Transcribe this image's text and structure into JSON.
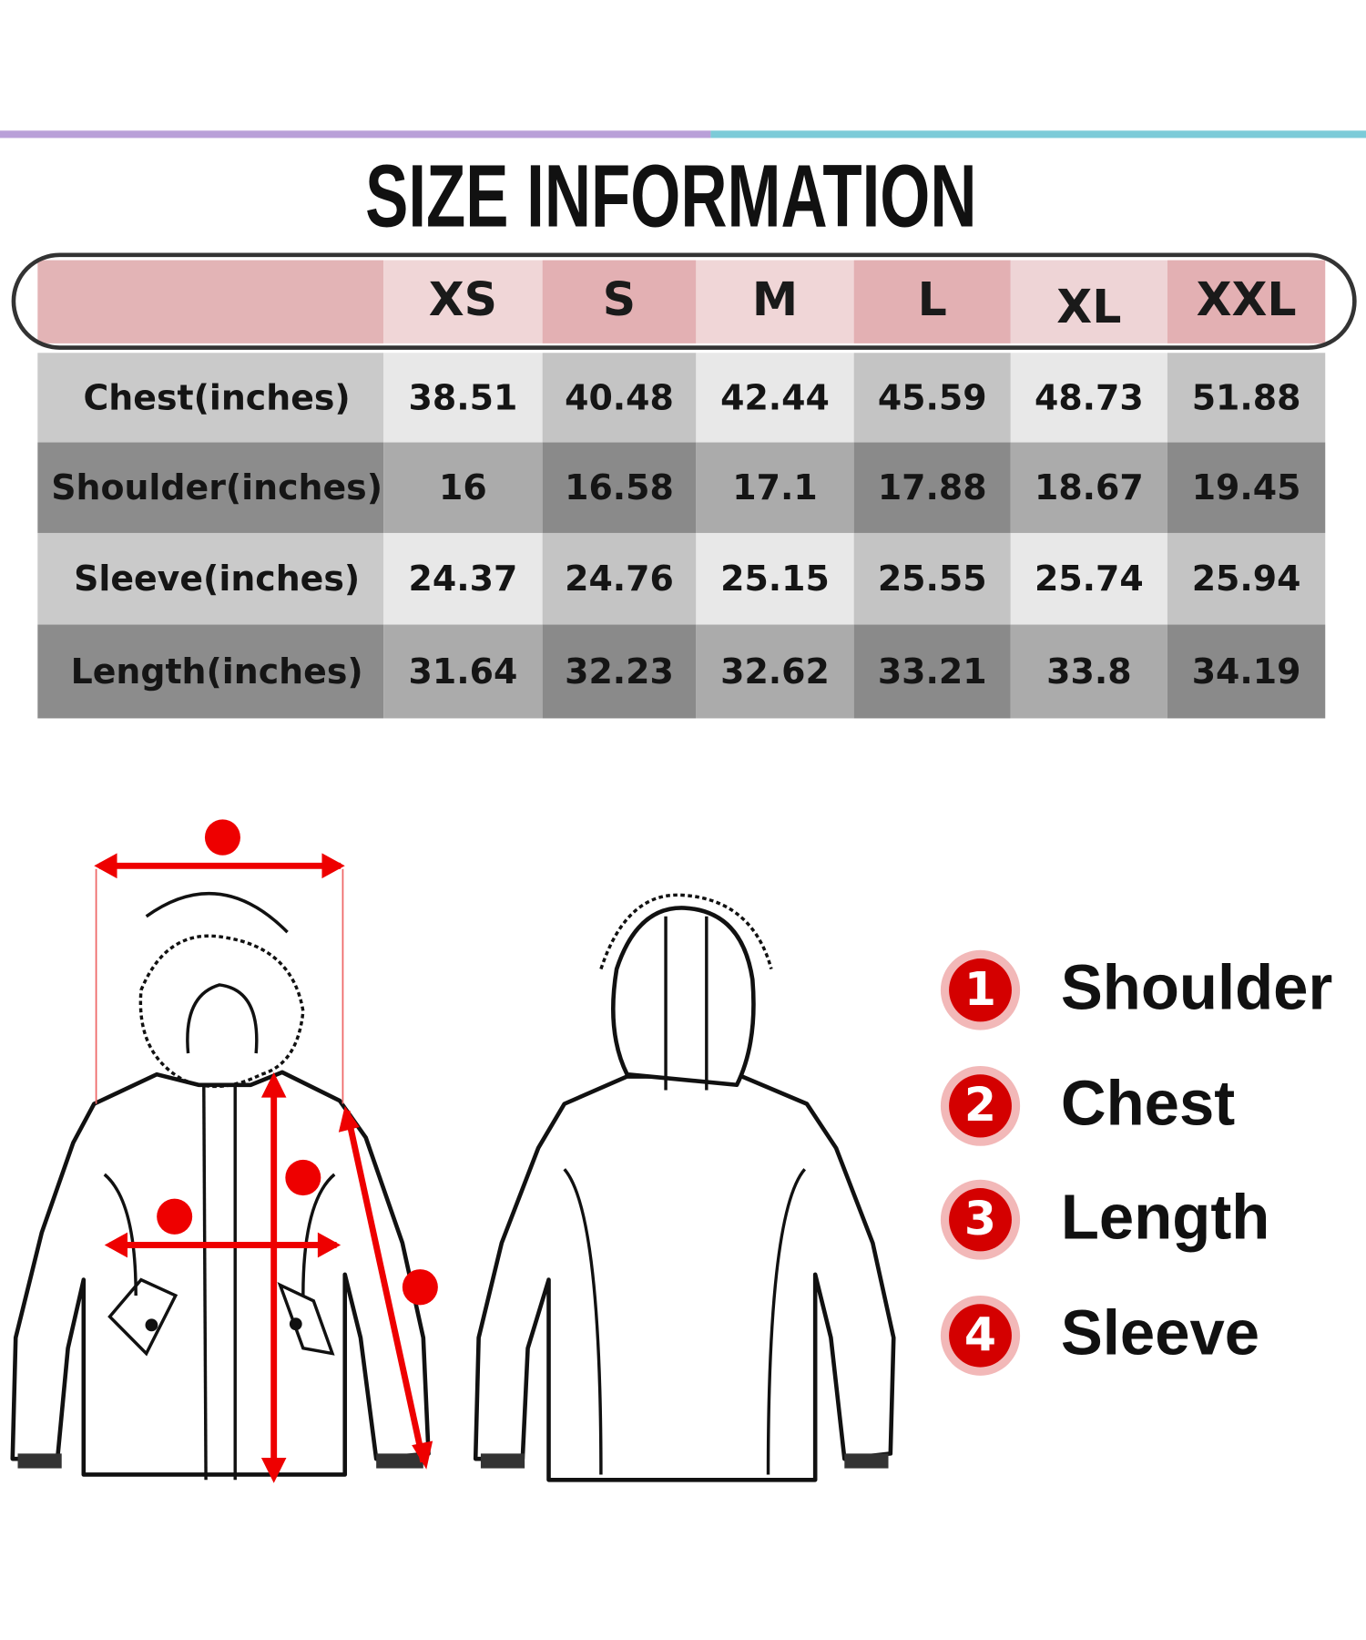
{
  "header": {
    "title": "SIZE INFORMATION"
  },
  "table": {
    "sizes": [
      "XS",
      "S",
      "M",
      "L",
      "XL",
      "XXL"
    ],
    "rows": [
      {
        "label": "Chest(inches)",
        "values": [
          38.51,
          40.48,
          42.44,
          45.59,
          48.73,
          51.88
        ]
      },
      {
        "label": "Shoulder(inches)",
        "values": [
          16,
          16.58,
          17.1,
          17.88,
          18.67,
          19.45
        ]
      },
      {
        "label": "Sleeve(inches)",
        "values": [
          24.37,
          24.76,
          25.15,
          25.55,
          25.74,
          25.94
        ]
      },
      {
        "label": "Length(inches)",
        "values": [
          31.64,
          32.23,
          32.62,
          33.21,
          33.8,
          34.19
        ]
      }
    ]
  },
  "legend": [
    {
      "number": 1,
      "label": "Shoulder"
    },
    {
      "number": 2,
      "label": "Chest"
    },
    {
      "number": 3,
      "label": "Length"
    },
    {
      "number": 4,
      "label": "Sleeve"
    }
  ]
}
